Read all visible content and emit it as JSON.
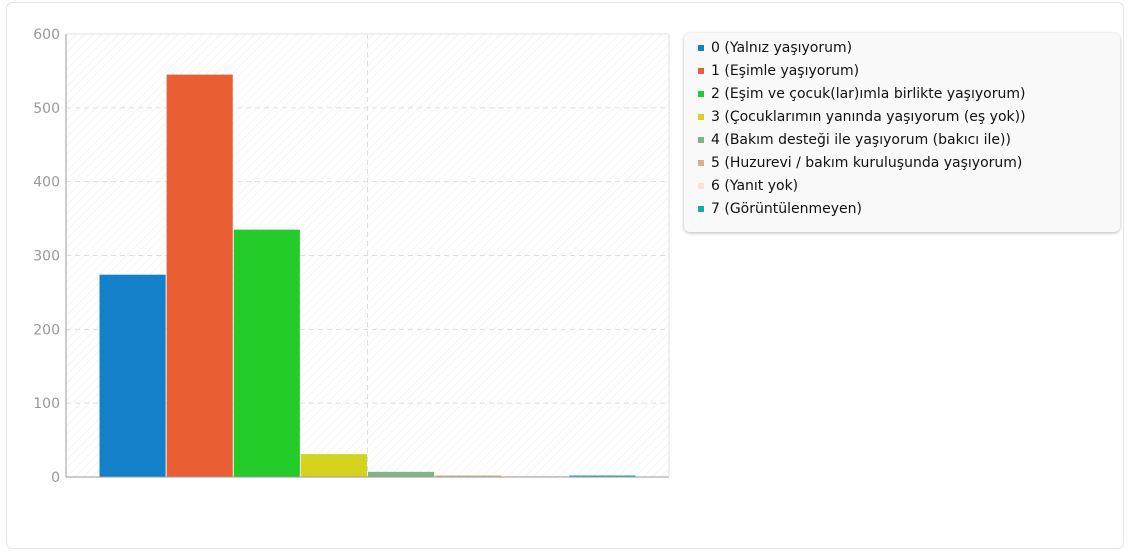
{
  "chart_data": {
    "type": "bar",
    "ylim": [
      0,
      600
    ],
    "yticks": [
      0,
      100,
      200,
      300,
      400,
      500,
      600
    ],
    "grid": true,
    "legend_position": "top-right",
    "series": [
      {
        "name": "0 (Yalnız yaşıyorum)",
        "value": 274,
        "color": "#1281c9"
      },
      {
        "name": "1 (Eşimle yaşıyorum)",
        "value": 545,
        "color": "#e95f33"
      },
      {
        "name": "2 (Eşim ve çocuk(lar)ımla birlikte yaşıyorum)",
        "value": 335,
        "color": "#23cc28"
      },
      {
        "name": "3 (Çocuklarımın yanında yaşıyorum (eş yok))",
        "value": 31,
        "color": "#d6d320"
      },
      {
        "name": "4 (Bakım desteği ile yaşıyorum (bakıcı ile))",
        "value": 7,
        "color": "#7fb57f"
      },
      {
        "name": "5 (Huzurevi / bakım kuruluşunda yaşıyorum)",
        "value": 2,
        "color": "#d7b08a"
      },
      {
        "name": "6 (Yanıt yok)",
        "value": 1,
        "color": "#f6e4dc"
      },
      {
        "name": "7 (Görüntülenmeyen)",
        "value": 2,
        "color": "#1aa8a8"
      }
    ]
  }
}
